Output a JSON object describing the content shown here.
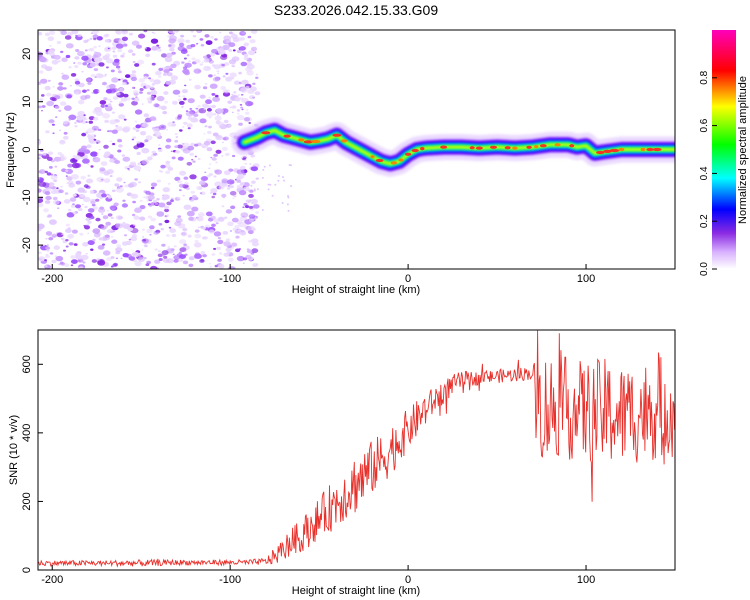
{
  "title": "S233.2026.042.15.33.G09",
  "colors": {
    "snr_line": "#e8302b",
    "frame": "#000000",
    "background": "#ffffff"
  },
  "chart_data": [
    {
      "type": "heatmap",
      "xlabel": "Height of straight line (km)",
      "ylabel": "Frequency (Hz)",
      "xlim": [
        -208,
        150
      ],
      "ylim": [
        -25,
        25
      ],
      "xticks": [
        -200,
        -100,
        0,
        100
      ],
      "yticks": [
        -20,
        -10,
        0,
        10,
        20
      ],
      "noise_region_x": [
        -208,
        -88
      ],
      "signal_trace": {
        "x": [
          -92,
          -85,
          -80,
          -75,
          -70,
          -65,
          -60,
          -55,
          -50,
          -45,
          -40,
          -35,
          -30,
          -25,
          -20,
          -15,
          -10,
          -5,
          0,
          5,
          10,
          20,
          30,
          40,
          50,
          60,
          70,
          80,
          90,
          95,
          100,
          105,
          110,
          120,
          130,
          140,
          150
        ],
        "y": [
          1.5,
          2.5,
          3.5,
          4.0,
          3.0,
          2.5,
          2.0,
          1.5,
          1.8,
          2.2,
          3.0,
          1.5,
          0.5,
          -0.5,
          -1.5,
          -2.5,
          -3.0,
          -2.5,
          -1.0,
          0.0,
          0.3,
          0.5,
          0.5,
          0.3,
          0.5,
          0.3,
          0.5,
          1.0,
          1.0,
          0.5,
          0.8,
          -0.8,
          -0.5,
          0.0,
          0.0,
          0.0,
          0.0
        ]
      },
      "colorbar": {
        "label": "Normalized spectral amplitude",
        "range": [
          0,
          1
        ],
        "ticks": [
          0.0,
          0.2,
          0.4,
          0.6,
          0.8
        ],
        "tick_labels": [
          "0.0",
          "0.2",
          "0.4",
          "0.6",
          "0.8"
        ]
      }
    },
    {
      "type": "line",
      "xlabel": "Height of straight line (km)",
      "ylabel": "SNR (10 * v/v)",
      "xlim": [
        -208,
        150
      ],
      "ylim": [
        0,
        700
      ],
      "xticks": [
        -200,
        -100,
        0,
        100
      ],
      "yticks": [
        0,
        200,
        400,
        600
      ],
      "series": [
        {
          "name": "SNR",
          "x": [
            -208,
            -190,
            -170,
            -150,
            -130,
            -110,
            -90,
            -80,
            -75,
            -70,
            -65,
            -60,
            -55,
            -50,
            -45,
            -40,
            -35,
            -30,
            -25,
            -20,
            -15,
            -10,
            -5,
            0,
            5,
            10,
            15,
            20,
            25,
            30,
            40,
            50,
            60,
            70,
            72,
            80,
            85,
            90,
            100,
            110,
            120,
            130,
            140,
            150
          ],
          "mean": [
            20,
            20,
            20,
            20,
            22,
            22,
            22,
            25,
            40,
            60,
            85,
            100,
            125,
            150,
            175,
            200,
            225,
            250,
            270,
            300,
            320,
            350,
            380,
            410,
            440,
            470,
            495,
            520,
            540,
            555,
            560,
            565,
            570,
            575,
            480,
            470,
            480,
            470,
            460,
            460,
            450,
            460,
            470,
            480
          ],
          "spread": [
            8,
            8,
            8,
            10,
            8,
            8,
            8,
            10,
            25,
            35,
            40,
            50,
            55,
            60,
            70,
            75,
            80,
            90,
            90,
            80,
            80,
            75,
            70,
            60,
            55,
            50,
            40,
            35,
            30,
            25,
            20,
            20,
            20,
            20,
            150,
            170,
            150,
            150,
            150,
            160,
            150,
            150,
            150,
            150
          ]
        }
      ]
    }
  ]
}
